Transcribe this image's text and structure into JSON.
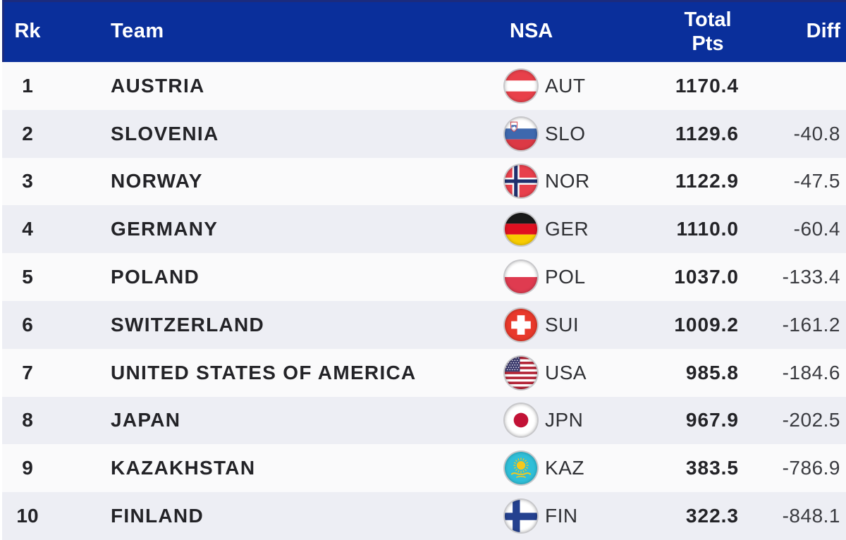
{
  "header": {
    "rk": "Rk",
    "team": "Team",
    "nsa": "NSA",
    "total_pts": "Total Pts",
    "diff": "Diff"
  },
  "rows": [
    {
      "rank": "1",
      "team": "AUSTRIA",
      "flag": "aut",
      "nsa": "AUT",
      "total_pts": "1170.4",
      "diff": ""
    },
    {
      "rank": "2",
      "team": "SLOVENIA",
      "flag": "slo",
      "nsa": "SLO",
      "total_pts": "1129.6",
      "diff": "-40.8"
    },
    {
      "rank": "3",
      "team": "NORWAY",
      "flag": "nor",
      "nsa": "NOR",
      "total_pts": "1122.9",
      "diff": "-47.5"
    },
    {
      "rank": "4",
      "team": "GERMANY",
      "flag": "ger",
      "nsa": "GER",
      "total_pts": "1110.0",
      "diff": "-60.4"
    },
    {
      "rank": "5",
      "team": "POLAND",
      "flag": "pol",
      "nsa": "POL",
      "total_pts": "1037.0",
      "diff": "-133.4"
    },
    {
      "rank": "6",
      "team": "SWITZERLAND",
      "flag": "sui",
      "nsa": "SUI",
      "total_pts": "1009.2",
      "diff": "-161.2"
    },
    {
      "rank": "7",
      "team": "UNITED STATES OF AMERICA",
      "flag": "usa",
      "nsa": "USA",
      "total_pts": "985.8",
      "diff": "-184.6"
    },
    {
      "rank": "8",
      "team": "JAPAN",
      "flag": "jpn",
      "nsa": "JPN",
      "total_pts": "967.9",
      "diff": "-202.5"
    },
    {
      "rank": "9",
      "team": "KAZAKHSTAN",
      "flag": "kaz",
      "nsa": "KAZ",
      "total_pts": "383.5",
      "diff": "-786.9"
    },
    {
      "rank": "10",
      "team": "FINLAND",
      "flag": "fin",
      "nsa": "FIN",
      "total_pts": "322.3",
      "diff": "-848.1"
    }
  ],
  "colors": {
    "header_bg": "#0A2F9B",
    "header_edge": "#1B2B7E",
    "header_text": "#FFFFFF",
    "row_odd_bg": "#FAFAFB",
    "row_even_bg": "#EDEEF4",
    "text_bold": "#232327",
    "text_regular": "#3A3B40"
  }
}
